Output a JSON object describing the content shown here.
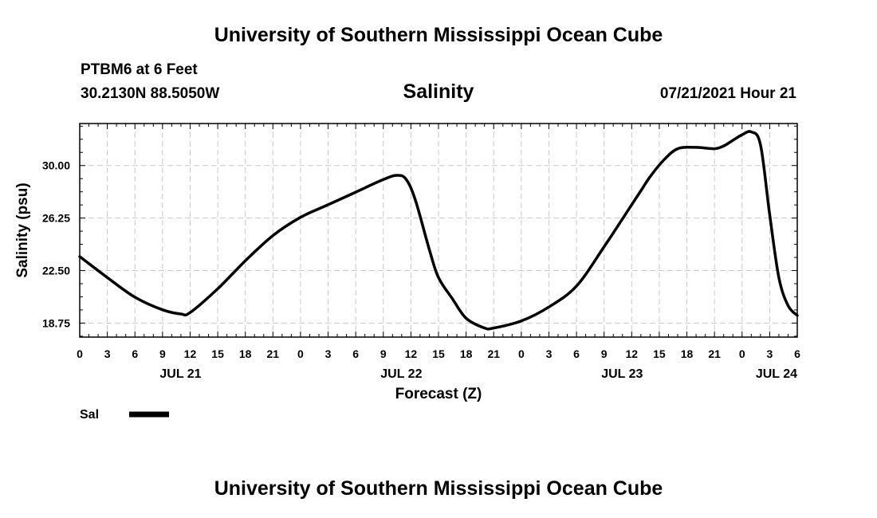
{
  "header": {
    "title": "University of Southern Mississippi Ocean Cube",
    "station": "PTBM6 at 6 Feet",
    "coords": "30.2130N  88.5050W",
    "datetime": "07/21/2021 Hour 21"
  },
  "footer": {
    "title": "University of Southern Mississippi Ocean Cube"
  },
  "chart_data": {
    "type": "line",
    "title": "Salinity",
    "xlabel": "Forecast (Z)",
    "ylabel": "Salinity (psu)",
    "ylim": [
      17.75,
      33.0
    ],
    "xlim": [
      0,
      78
    ],
    "grid": true,
    "yticks": [
      18.75,
      22.5,
      26.25,
      30.0
    ],
    "ytick_labels": [
      "18.75",
      "22.50",
      "26.25",
      "30.00"
    ],
    "xticks": [
      0,
      3,
      6,
      9,
      12,
      15,
      18,
      21,
      24,
      27,
      30,
      33,
      36,
      39,
      42,
      45,
      48,
      51,
      54,
      57,
      60,
      63,
      66,
      69,
      72,
      75,
      78
    ],
    "xtick_labels": [
      "0",
      "3",
      "6",
      "9",
      "12",
      "15",
      "18",
      "21",
      "0",
      "3",
      "6",
      "9",
      "12",
      "15",
      "18",
      "21",
      "0",
      "3",
      "6",
      "9",
      "12",
      "15",
      "18",
      "21",
      "0",
      "3",
      "6"
    ],
    "date_labels": [
      {
        "hour": 12,
        "text": "JUL 21"
      },
      {
        "hour": 36,
        "text": "JUL 22"
      },
      {
        "hour": 60,
        "text": "JUL 23"
      },
      {
        "hour": 78,
        "text": "JUL 24"
      }
    ],
    "legend": {
      "position": "bottom-left",
      "entries": [
        {
          "name": "Sal"
        }
      ]
    },
    "series": [
      {
        "name": "Sal",
        "color": "#000000",
        "x": [
          0,
          3,
          6,
          9,
          11,
          12,
          15,
          18,
          21,
          24,
          27,
          30,
          33,
          34.5,
          35.5,
          36.5,
          38,
          39,
          40.5,
          42,
          44,
          45,
          48,
          51,
          54,
          57,
          60,
          61,
          62,
          63.5,
          65,
          67,
          69,
          70,
          71,
          72,
          73,
          74,
          75,
          76,
          77,
          78
        ],
        "values": [
          23.5,
          22.0,
          20.6,
          19.7,
          19.4,
          19.5,
          21.2,
          23.2,
          25.0,
          26.3,
          27.2,
          28.1,
          29.0,
          29.3,
          29.0,
          27.5,
          24.0,
          22.0,
          20.5,
          19.1,
          18.4,
          18.4,
          18.9,
          19.9,
          21.4,
          24.2,
          27.2,
          28.2,
          29.2,
          30.4,
          31.2,
          31.3,
          31.2,
          31.4,
          31.8,
          32.2,
          32.4,
          31.5,
          26.5,
          22.0,
          20.0,
          19.3
        ]
      }
    ]
  }
}
